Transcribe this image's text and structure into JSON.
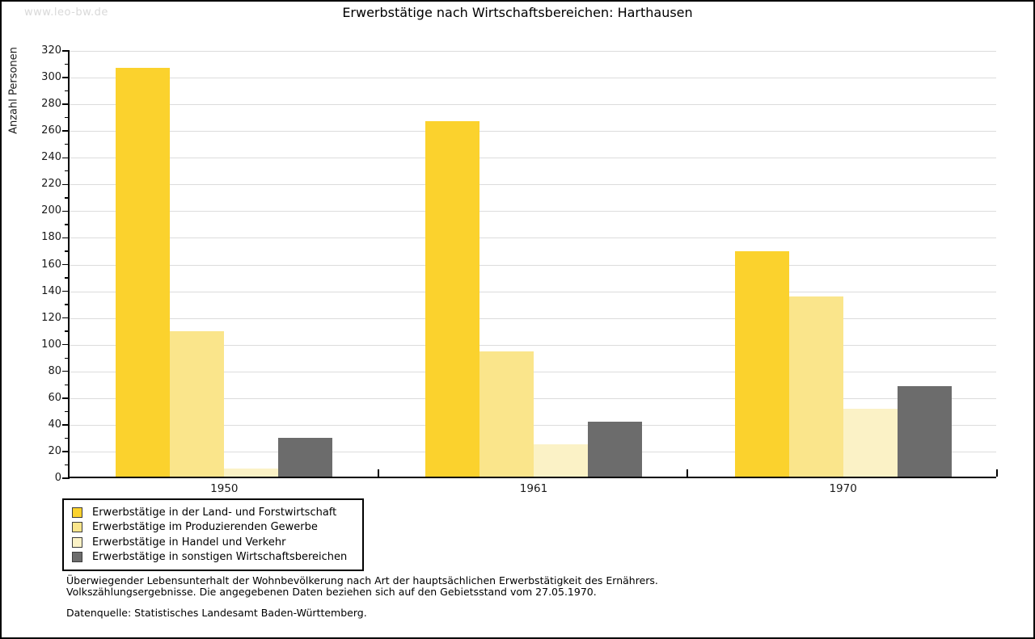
{
  "watermark": "www.leo-bw.de",
  "title": "Erwerbstätige nach Wirtschaftsbereichen: Harthausen",
  "chart_data": {
    "type": "bar",
    "title": "Erwerbstätige nach Wirtschaftsbereichen: Harthausen",
    "xlabel": "",
    "ylabel": "Anzahl Personen",
    "ylim": [
      0,
      320
    ],
    "ytick_step": 20,
    "ytick_minor_step": 10,
    "grid": true,
    "legend_position": "bottom-left",
    "categories": [
      "1950",
      "1961",
      "1970"
    ],
    "series": [
      {
        "name": "Erwerbstätige in der Land- und Forstwirtschaft",
        "color": "#FBD22D",
        "values": [
          306,
          266,
          169
        ]
      },
      {
        "name": "Erwerbstätige im Produzierenden Gewerbe",
        "color": "#FAE58B",
        "values": [
          109,
          94,
          135
        ]
      },
      {
        "name": "Erwerbstätige in Handel und Verkehr",
        "color": "#FBF2C6",
        "values": [
          6,
          24,
          51
        ]
      },
      {
        "name": "Erwerbstätige in sonstigen Wirtschaftsbereichen",
        "color": "#6C6C6C",
        "values": [
          29,
          41,
          68
        ]
      }
    ]
  },
  "notes": {
    "line1": "Überwiegender Lebensunterhalt der Wohnbevölkerung nach Art der hauptsächlichen Erwerbstätigkeit des Ernährers.",
    "line2": "Volkszählungsergebnisse. Die angegebenen Daten beziehen sich auf den Gebietsstand vom 27.05.1970.",
    "source": "Datenquelle: Statistisches Landesamt Baden-Württemberg."
  }
}
